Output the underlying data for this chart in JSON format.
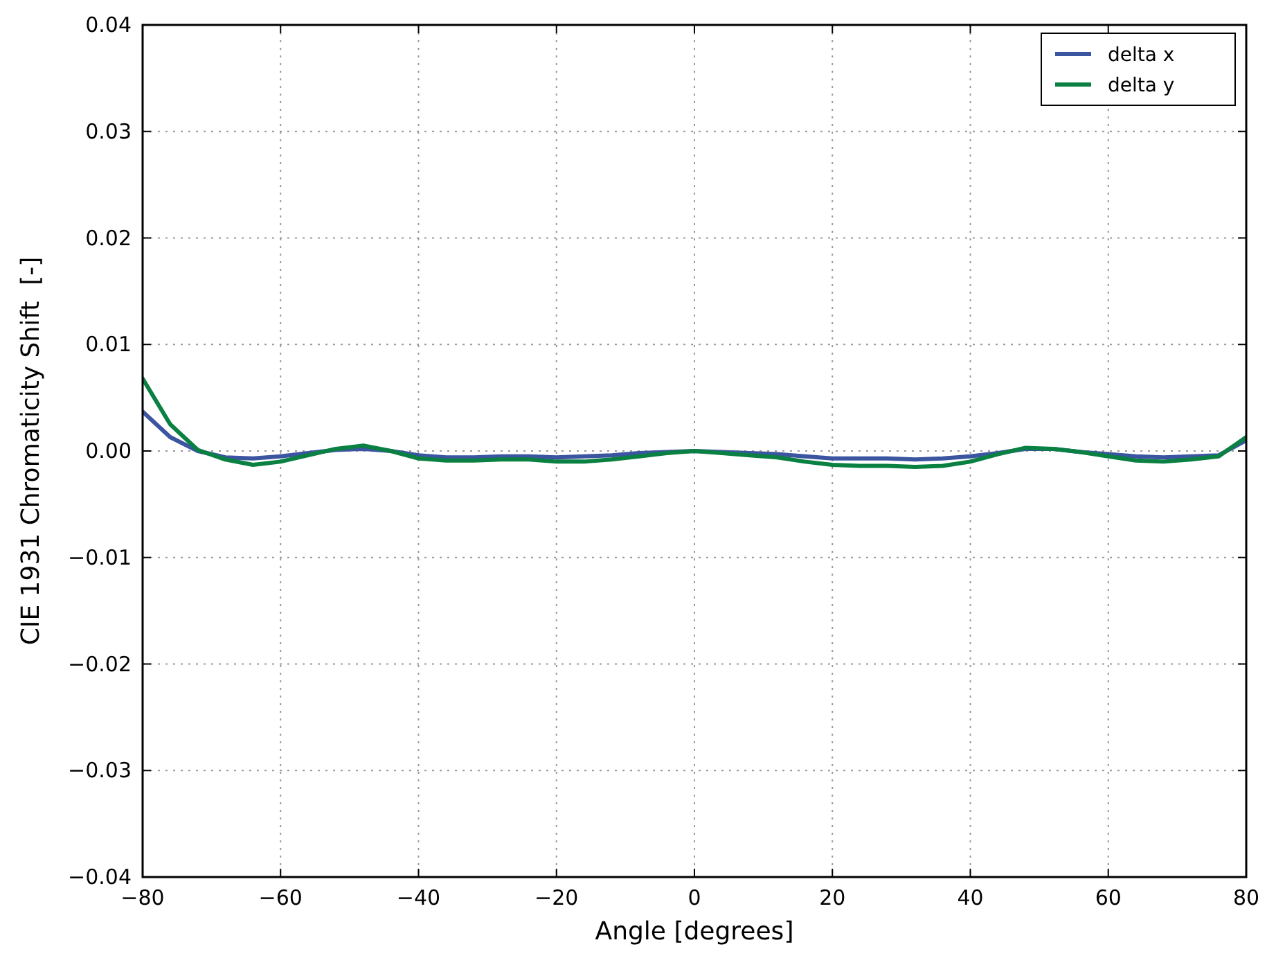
{
  "chart_data": {
    "type": "line",
    "xlabel": "Angle [degrees]",
    "ylabel": "CIE 1931 Chromaticity Shift  [-]",
    "x": [
      -80,
      -76,
      -72,
      -68,
      -64,
      -60,
      -56,
      -52,
      -48,
      -44,
      -40,
      -36,
      -32,
      -28,
      -24,
      -20,
      -16,
      -12,
      -8,
      -4,
      0,
      4,
      8,
      12,
      16,
      20,
      24,
      28,
      32,
      36,
      40,
      44,
      48,
      52,
      56,
      60,
      64,
      68,
      72,
      76,
      80
    ],
    "series": [
      {
        "name": "delta x",
        "color": "#3b55a0",
        "values": [
          0.0037,
          0.0013,
          0.0,
          -0.0006,
          -0.0007,
          -0.0005,
          -0.0002,
          0.0001,
          0.0002,
          0.0,
          -0.0004,
          -0.0006,
          -0.0006,
          -0.0005,
          -0.0005,
          -0.0006,
          -0.0005,
          -0.0004,
          -0.0002,
          -0.0001,
          0.0,
          -0.0001,
          -0.0002,
          -0.0003,
          -0.0005,
          -0.0007,
          -0.0007,
          -0.0007,
          -0.0008,
          -0.0007,
          -0.0005,
          -0.0002,
          0.0002,
          0.0002,
          -0.0001,
          -0.0003,
          -0.0005,
          -0.0006,
          -0.0005,
          -0.0004,
          0.001
        ]
      },
      {
        "name": "delta y",
        "color": "#0b8043",
        "values": [
          0.0068,
          0.0025,
          0.0001,
          -0.0008,
          -0.0013,
          -0.001,
          -0.0004,
          0.0002,
          0.0005,
          0.0,
          -0.0007,
          -0.0009,
          -0.0009,
          -0.0008,
          -0.0008,
          -0.001,
          -0.001,
          -0.0008,
          -0.0005,
          -0.0002,
          0.0,
          -0.0002,
          -0.0004,
          -0.0006,
          -0.001,
          -0.0013,
          -0.0014,
          -0.0014,
          -0.0015,
          -0.0014,
          -0.001,
          -0.0003,
          0.0003,
          0.0002,
          -0.0001,
          -0.0005,
          -0.0009,
          -0.001,
          -0.0008,
          -0.0005,
          0.0013
        ]
      }
    ],
    "xlim": [
      -80,
      80
    ],
    "ylim": [
      -0.04,
      0.04
    ],
    "xticks": [
      {
        "value": -80,
        "label": "−80"
      },
      {
        "value": -60,
        "label": "−60"
      },
      {
        "value": -40,
        "label": "−40"
      },
      {
        "value": -20,
        "label": "−20"
      },
      0,
      20,
      40,
      60,
      80
    ],
    "yticks": [
      {
        "value": -0.04,
        "label": "−0.04"
      },
      {
        "value": -0.03,
        "label": "−0.03"
      },
      {
        "value": -0.02,
        "label": "−0.02"
      },
      {
        "value": -0.01,
        "label": "−0.01"
      },
      {
        "value": 0,
        "label": "0.00"
      },
      0.01,
      0.02,
      0.03,
      0.04
    ],
    "grid": true,
    "legend": "top right",
    "marker": "none",
    "line_style": "solid"
  }
}
